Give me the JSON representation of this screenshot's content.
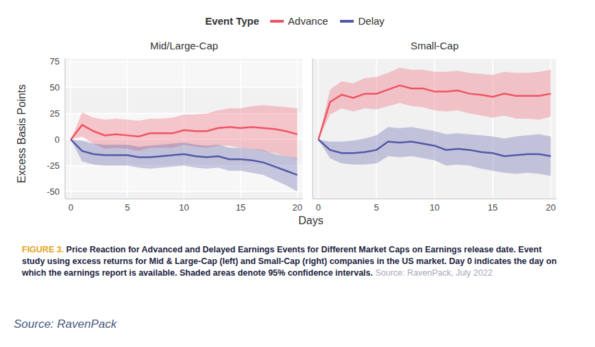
{
  "legend_title": "Event Type",
  "xlabel": "Days",
  "ylabel": "Excess Basis Points",
  "caption_label": "FIGURE 3.",
  "caption": "Price Reaction for Advanced and Delayed Earnings Events for Different Market Caps on Earnings release date. Event study using excess returns for Mid & Large-Cap (left) and Small-Cap (right) companies in the US market. Day 0 indicates the day on which the earnings report is available. Shaded areas denote 95% confidence intervals.",
  "caption_source": "Source: RavenPack, July 2022",
  "source": "Source: RavenPack",
  "chart_data": [
    {
      "type": "line",
      "title": "Mid/Large-Cap",
      "x": [
        0,
        1,
        2,
        3,
        4,
        5,
        6,
        7,
        8,
        9,
        10,
        11,
        12,
        13,
        14,
        15,
        16,
        17,
        18,
        19,
        20
      ],
      "series": [
        {
          "name": "Advance",
          "color": "#ef5462",
          "values": [
            0,
            14,
            8,
            4,
            5,
            4,
            3,
            6,
            6,
            6,
            9,
            8,
            8,
            11,
            12,
            11,
            12,
            11,
            10,
            8,
            5
          ],
          "upper": [
            0,
            26,
            21,
            19,
            20,
            19,
            18,
            20,
            20,
            21,
            24,
            24,
            25,
            28,
            30,
            30,
            32,
            33,
            32,
            31,
            30
          ],
          "lower": [
            0,
            3,
            -4,
            -9,
            -8,
            -9,
            -11,
            -8,
            -8,
            -8,
            -5,
            -7,
            -8,
            -6,
            -6,
            -8,
            -9,
            -11,
            -13,
            -16,
            -19
          ]
        },
        {
          "name": "Delay",
          "color": "#5357a6",
          "values": [
            0,
            -11,
            -14,
            -15,
            -15,
            -15,
            -17,
            -17,
            -16,
            -15,
            -14,
            -16,
            -17,
            -16,
            -19,
            -19,
            -20,
            -22,
            -26,
            -30,
            -34
          ],
          "upper": [
            0,
            -1,
            -4,
            -5,
            -5,
            -5,
            -7,
            -6,
            -5,
            -4,
            -3,
            -5,
            -6,
            -5,
            -8,
            -8,
            -9,
            -10,
            -14,
            -16,
            -18
          ],
          "lower": [
            0,
            -21,
            -24,
            -25,
            -25,
            -25,
            -27,
            -28,
            -27,
            -26,
            -25,
            -27,
            -28,
            -27,
            -30,
            -30,
            -32,
            -34,
            -39,
            -44,
            -50
          ]
        }
      ],
      "xlim": [
        -0.5,
        20.5
      ],
      "xticks": [
        0,
        5,
        10,
        15,
        20
      ],
      "ylim": [
        -57,
        78
      ],
      "yticks": [
        -50,
        -25,
        0,
        25,
        50,
        75
      ],
      "grid": true
    },
    {
      "type": "line",
      "title": "Small-Cap",
      "x": [
        0,
        1,
        2,
        3,
        4,
        5,
        6,
        7,
        8,
        9,
        10,
        11,
        12,
        13,
        14,
        15,
        16,
        17,
        18,
        19,
        20
      ],
      "series": [
        {
          "name": "Advance",
          "color": "#ef5462",
          "values": [
            0,
            36,
            43,
            40,
            44,
            44,
            48,
            52,
            49,
            49,
            46,
            46,
            47,
            44,
            43,
            41,
            44,
            42,
            42,
            42,
            44
          ],
          "upper": [
            0,
            48,
            56,
            54,
            59,
            60,
            64,
            69,
            67,
            67,
            65,
            65,
            66,
            64,
            63,
            62,
            65,
            64,
            64,
            65,
            67
          ],
          "lower": [
            0,
            24,
            30,
            27,
            30,
            29,
            32,
            35,
            32,
            31,
            28,
            27,
            28,
            25,
            23,
            21,
            23,
            20,
            20,
            19,
            22
          ]
        },
        {
          "name": "Delay",
          "color": "#5357a6",
          "values": [
            0,
            -10,
            -13,
            -13,
            -12,
            -10,
            -2,
            -3,
            -2,
            -4,
            -6,
            -10,
            -9,
            -10,
            -12,
            -13,
            -16,
            -15,
            -14,
            -14,
            -16
          ],
          "upper": [
            0,
            -2,
            -2,
            -1,
            1,
            4,
            12,
            11,
            12,
            10,
            8,
            5,
            6,
            5,
            4,
            3,
            1,
            3,
            4,
            5,
            3
          ],
          "lower": [
            0,
            -18,
            -23,
            -24,
            -24,
            -23,
            -16,
            -17,
            -16,
            -18,
            -20,
            -25,
            -24,
            -25,
            -28,
            -30,
            -32,
            -33,
            -32,
            -33,
            -35
          ]
        }
      ],
      "xlim": [
        -0.5,
        20.5
      ],
      "xticks": [
        0,
        5,
        10,
        15,
        20
      ],
      "ylim": [
        -57,
        78
      ],
      "yticks": [
        -50,
        -25,
        0,
        25,
        50,
        75
      ],
      "grid": true,
      "tick_labels": "x"
    }
  ]
}
